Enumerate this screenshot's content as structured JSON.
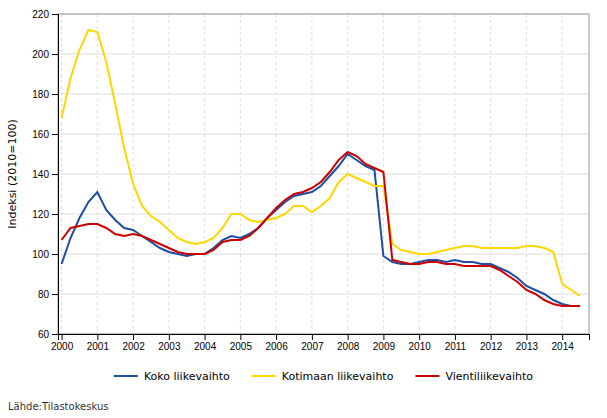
{
  "chart_data": {
    "type": "line",
    "ylabel": "Indeksi (2010=100)",
    "annotations": [
      "Lähde:Tilastokeskus"
    ],
    "x": [
      2000,
      2000.25,
      2000.5,
      2000.75,
      2001,
      2001.25,
      2001.5,
      2001.75,
      2002,
      2002.25,
      2002.5,
      2002.75,
      2003,
      2003.25,
      2003.5,
      2003.75,
      2004,
      2004.25,
      2004.5,
      2004.75,
      2005,
      2005.25,
      2005.5,
      2005.75,
      2006,
      2006.25,
      2006.5,
      2006.75,
      2007,
      2007.25,
      2007.5,
      2007.75,
      2008,
      2008.25,
      2008.5,
      2008.75,
      2009,
      2009.25,
      2009.5,
      2009.75,
      2010,
      2010.25,
      2010.5,
      2010.75,
      2011,
      2011.25,
      2011.5,
      2011.75,
      2012,
      2012.25,
      2012.5,
      2012.75,
      2013,
      2013.25,
      2013.5,
      2013.75,
      2014,
      2014.25,
      2014.5
    ],
    "series": [
      {
        "name": "Koko liikevaihto",
        "color": "#1f4e9e",
        "values": [
          95,
          108,
          118,
          126,
          131,
          122,
          117,
          113,
          112,
          109,
          106,
          103,
          101,
          100,
          99,
          100,
          100,
          103,
          107,
          109,
          108,
          110,
          113,
          118,
          122,
          126,
          129,
          130,
          131,
          134,
          139,
          144,
          150,
          147,
          144,
          142,
          99,
          96,
          95,
          95,
          96,
          97,
          97,
          96,
          97,
          96,
          96,
          95,
          95,
          93,
          91,
          88,
          84,
          82,
          80,
          77,
          75,
          74,
          74
        ]
      },
      {
        "name": "Kotimaan liikevaihto",
        "color": "#ffd700",
        "values": [
          168,
          188,
          202,
          212,
          211,
          196,
          175,
          153,
          135,
          124,
          119,
          116,
          112,
          108,
          106,
          105,
          106,
          108,
          113,
          120,
          120,
          117,
          116,
          117,
          118,
          120,
          124,
          124,
          121,
          124,
          128,
          136,
          140,
          138,
          136,
          134,
          134,
          105,
          102,
          101,
          100,
          100,
          101,
          102,
          103,
          104,
          104,
          103,
          103,
          103,
          103,
          103,
          104,
          104,
          103,
          101,
          85,
          82,
          79
        ]
      },
      {
        "name": "Vientiliikevaihto",
        "color": "#cc0000",
        "values": [
          107,
          113,
          114,
          115,
          115,
          113,
          110,
          109,
          110,
          109,
          107,
          105,
          103,
          101,
          100,
          100,
          100,
          102,
          106,
          107,
          107,
          109,
          113,
          118,
          123,
          127,
          130,
          131,
          133,
          136,
          141,
          147,
          151,
          149,
          145,
          143,
          141,
          97,
          96,
          95,
          95,
          96,
          96,
          95,
          95,
          94,
          94,
          94,
          94,
          92,
          89,
          86,
          82,
          80,
          77,
          75,
          74,
          74,
          74
        ]
      }
    ],
    "xlim": [
      1999.9,
      2014.75
    ],
    "xticks": [
      2000,
      2001,
      2002,
      2003,
      2004,
      2005,
      2006,
      2007,
      2008,
      2009,
      2010,
      2011,
      2012,
      2013,
      2014
    ],
    "ylim": [
      60,
      220
    ],
    "yticks": [
      60,
      80,
      100,
      120,
      140,
      160,
      180,
      200,
      220
    ],
    "grid": true,
    "legend": "bottom"
  }
}
